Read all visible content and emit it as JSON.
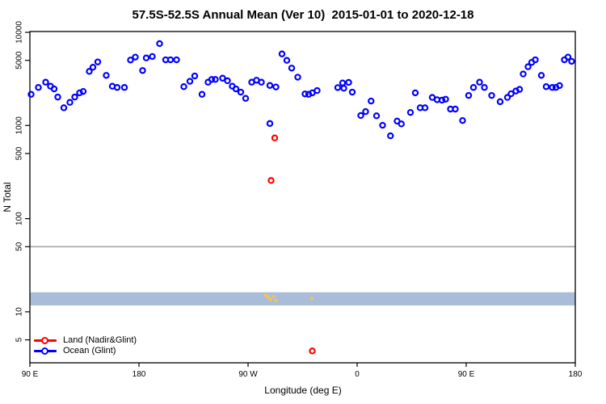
{
  "title": "57.5S-52.5S Annual Mean (Ver 10)  2015-01-01 to 2020-12-18",
  "axes": {
    "x_label": "Longitude (deg E)",
    "y_label": "N Total"
  },
  "legend": {
    "items": [
      {
        "label": "Land (Nadir&Glint)",
        "color": "#ff0000",
        "marker": "open-circle-on-line"
      },
      {
        "label": "Ocean (Glint)",
        "color": "#0000ff",
        "marker": "open-circle-on-line"
      }
    ]
  },
  "colors": {
    "ocean": "#0000ff",
    "land": "#ff0000",
    "band": "#a9bdd9",
    "band_marks": "#f2c45a",
    "reference_line": "#a6a6a6",
    "axis": "#000000"
  },
  "chart_data": {
    "type": "scatter",
    "title": "57.5S-52.5S Annual Mean (Ver 10)  2015-01-01 to 2020-12-18",
    "xlabel": "Longitude (deg E)",
    "ylabel": "N Total",
    "x_axis": {
      "units": "deg E, wrapping eastward from 90E",
      "range": [
        90,
        540
      ],
      "ticks": [
        90,
        180,
        270,
        360,
        450,
        540
      ],
      "tick_labels": [
        "90 E",
        "180",
        "90 W",
        "0",
        "90 E",
        "180"
      ]
    },
    "y_axis": {
      "scale": "log10",
      "range": [
        2.9,
        10500
      ],
      "ticks": [
        10000,
        5000,
        1000,
        500,
        100,
        50,
        10,
        5
      ],
      "tick_labels": [
        "10000",
        "5000",
        "1000",
        "500",
        "100",
        "50",
        "10",
        "5"
      ]
    },
    "reference_line": {
      "y": 50
    },
    "band": {
      "y_from": 11.7,
      "y_to": 16.2
    },
    "series": [
      {
        "name": "Ocean (Glint)",
        "marker": "open-circle",
        "color": "#0000ff",
        "points": [
          [
            91,
            2160
          ],
          [
            97,
            2560
          ],
          [
            103,
            2915
          ],
          [
            107,
            2640
          ],
          [
            110,
            2470
          ],
          [
            113,
            2020
          ],
          [
            118,
            1550
          ],
          [
            123,
            1770
          ],
          [
            127,
            2020
          ],
          [
            131,
            2240
          ],
          [
            134,
            2320
          ],
          [
            139,
            3810
          ],
          [
            142,
            4220
          ],
          [
            146,
            4810
          ],
          [
            153,
            3450
          ],
          [
            158,
            2640
          ],
          [
            162,
            2560
          ],
          [
            168,
            2560
          ],
          [
            173,
            5040
          ],
          [
            177,
            5420
          ],
          [
            183,
            3890
          ],
          [
            186,
            5310
          ],
          [
            191,
            5500
          ],
          [
            197,
            7570
          ],
          [
            202,
            5070
          ],
          [
            206,
            5070
          ],
          [
            211,
            5070
          ],
          [
            217,
            2610
          ],
          [
            222,
            2980
          ],
          [
            226,
            3400
          ],
          [
            232,
            2160
          ],
          [
            237,
            2915
          ],
          [
            240,
            3120
          ],
          [
            243,
            3120
          ],
          [
            249,
            3220
          ],
          [
            253,
            3020
          ],
          [
            257,
            2640
          ],
          [
            260,
            2470
          ],
          [
            264,
            2280
          ],
          [
            268,
            1955
          ],
          [
            273,
            2915
          ],
          [
            277,
            3060
          ],
          [
            281,
            2915
          ],
          [
            288,
            2690
          ],
          [
            288,
            1050
          ],
          [
            293,
            2590
          ],
          [
            298,
            5860
          ],
          [
            302,
            5000
          ],
          [
            306,
            4130
          ],
          [
            311,
            3300
          ],
          [
            317,
            2180
          ],
          [
            320,
            2160
          ],
          [
            323,
            2240
          ],
          [
            327,
            2370
          ],
          [
            344,
            2550
          ],
          [
            348,
            2860
          ],
          [
            349,
            2510
          ],
          [
            353,
            2900
          ],
          [
            356,
            2280
          ],
          [
            363,
            1280
          ],
          [
            367,
            1410
          ],
          [
            371.5,
            1830
          ],
          [
            376,
            1270
          ],
          [
            381,
            1005
          ],
          [
            387.5,
            775
          ],
          [
            393,
            1115
          ],
          [
            396.5,
            1040
          ],
          [
            404,
            1380
          ],
          [
            408,
            2240
          ],
          [
            412,
            1550
          ],
          [
            416,
            1550
          ],
          [
            422,
            2000
          ],
          [
            426,
            1890
          ],
          [
            430,
            1870
          ],
          [
            433,
            1915
          ],
          [
            437,
            1500
          ],
          [
            441,
            1500
          ],
          [
            447,
            1130
          ],
          [
            452,
            2100
          ],
          [
            456,
            2560
          ],
          [
            461,
            2915
          ],
          [
            465,
            2560
          ],
          [
            471,
            2100
          ],
          [
            478,
            1800
          ],
          [
            484,
            2000
          ],
          [
            487,
            2190
          ],
          [
            491,
            2345
          ],
          [
            494,
            2440
          ],
          [
            497,
            3570
          ],
          [
            501,
            4270
          ],
          [
            504,
            4750
          ],
          [
            507,
            5070
          ],
          [
            512,
            3450
          ],
          [
            516,
            2610
          ],
          [
            521,
            2560
          ],
          [
            524,
            2560
          ],
          [
            527,
            2680
          ],
          [
            531,
            5070
          ],
          [
            534,
            5420
          ],
          [
            537,
            4880
          ]
        ]
      },
      {
        "name": "Land (Nadir&Glint)",
        "marker": "open-circle",
        "color": "#ff0000",
        "points": [
          [
            289,
            257
          ],
          [
            292,
            735
          ],
          [
            323,
            3.8
          ]
        ]
      },
      {
        "name": "Land band marks",
        "marker": "dot",
        "color": "#f2c45a",
        "points": [
          [
            284.5,
            15.0
          ],
          [
            286.5,
            14.4
          ],
          [
            288.5,
            13.6
          ],
          [
            291,
            14.6
          ],
          [
            293,
            13.2
          ],
          [
            322.7,
            13.9
          ]
        ]
      }
    ]
  }
}
